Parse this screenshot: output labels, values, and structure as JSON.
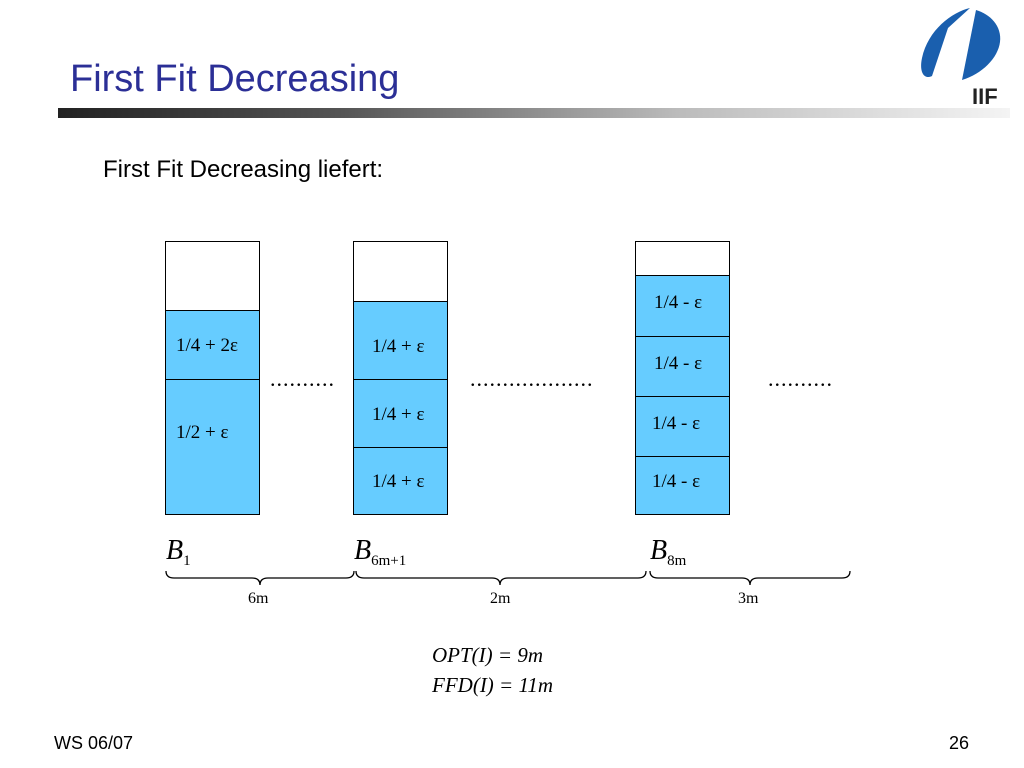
{
  "slide": {
    "title": "First Fit Decreasing",
    "subtitle": "First Fit Decreasing liefert:",
    "logo_text": "IIF",
    "footer_left": "WS 06/07",
    "page_number": "26"
  },
  "bins": {
    "bin1_items": [
      "1/4 + 2ε",
      "1/2 + ε"
    ],
    "bin2_items": [
      "1/4 + ε",
      "1/4 + ε",
      "1/4 + ε"
    ],
    "bin3_items": [
      "1/4 - ε",
      "1/4 - ε",
      "1/4 - ε",
      "1/4 - ε"
    ],
    "dots": [
      "..........",
      "...................",
      ".........."
    ],
    "labels": [
      {
        "base": "B",
        "sub": "1"
      },
      {
        "base": "B",
        "sub": "6m+1"
      },
      {
        "base": "B",
        "sub": "8m"
      }
    ],
    "brace_labels": [
      "6m",
      "2m",
      "3m"
    ]
  },
  "equations": {
    "opt": "OPT(I)  = 9m",
    "ffd": "FFD(I)  = 11m"
  },
  "colors": {
    "title": "#2b2f96",
    "item_fill": "#66ccff",
    "logo": "#1a5fae"
  }
}
